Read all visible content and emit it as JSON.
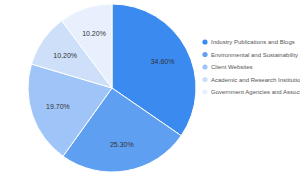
{
  "chart_data": {
    "type": "pie",
    "categories": [
      "Industry Publications and Blogs",
      "Environmental and Sustainability Sites",
      "Client Websites",
      "Academic and Research Institutions",
      "Government Agencies and Associations"
    ],
    "values": [
      34.6,
      25.3,
      19.7,
      10.2,
      10.2
    ],
    "value_labels": [
      "34.60%",
      "25.30%",
      "19.70%",
      "10.20%",
      "10.20%"
    ],
    "colors": [
      "#3a8af0",
      "#5e9ff2",
      "#9fc4f7",
      "#cddff9",
      "#e7f0fc"
    ],
    "data_labels": true,
    "legend": "right"
  }
}
